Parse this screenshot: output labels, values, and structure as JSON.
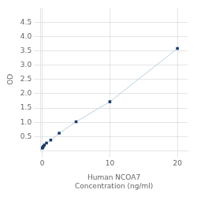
{
  "chart_data": {
    "type": "line",
    "xlabel": "Human NCOA7\nConcentration (ng/ml)",
    "ylabel": "OD",
    "x": [
      0.0,
      0.078,
      0.156,
      0.313,
      0.625,
      1.25,
      2.5,
      5,
      10,
      20
    ],
    "series": [
      {
        "type": "line",
        "color": "#b8d0e0",
        "values": [
          0.1,
          0.13,
          0.16,
          0.21,
          0.28,
          0.38,
          0.62,
          1.02,
          1.72,
          3.58
        ]
      },
      {
        "type": "scatter",
        "color": "#1a3a6b",
        "marker": "square",
        "values": [
          0.1,
          0.13,
          0.16,
          0.21,
          0.28,
          0.38,
          0.62,
          1.02,
          1.72,
          3.58
        ]
      }
    ],
    "xlim": [
      -0.3,
      21.5
    ],
    "xticks": [
      0,
      10,
      20
    ],
    "ylim": [
      0,
      5.0
    ],
    "yticks": [
      0.5,
      {
        "value": 1.0,
        "label": "1.0"
      },
      1.5,
      {
        "value": 2.0,
        "label": "2.0"
      },
      2.5,
      {
        "value": 3.0,
        "label": "3.0"
      },
      3.5,
      {
        "value": 4.0,
        "label": "4.0"
      },
      4.5
    ],
    "grid": true
  }
}
